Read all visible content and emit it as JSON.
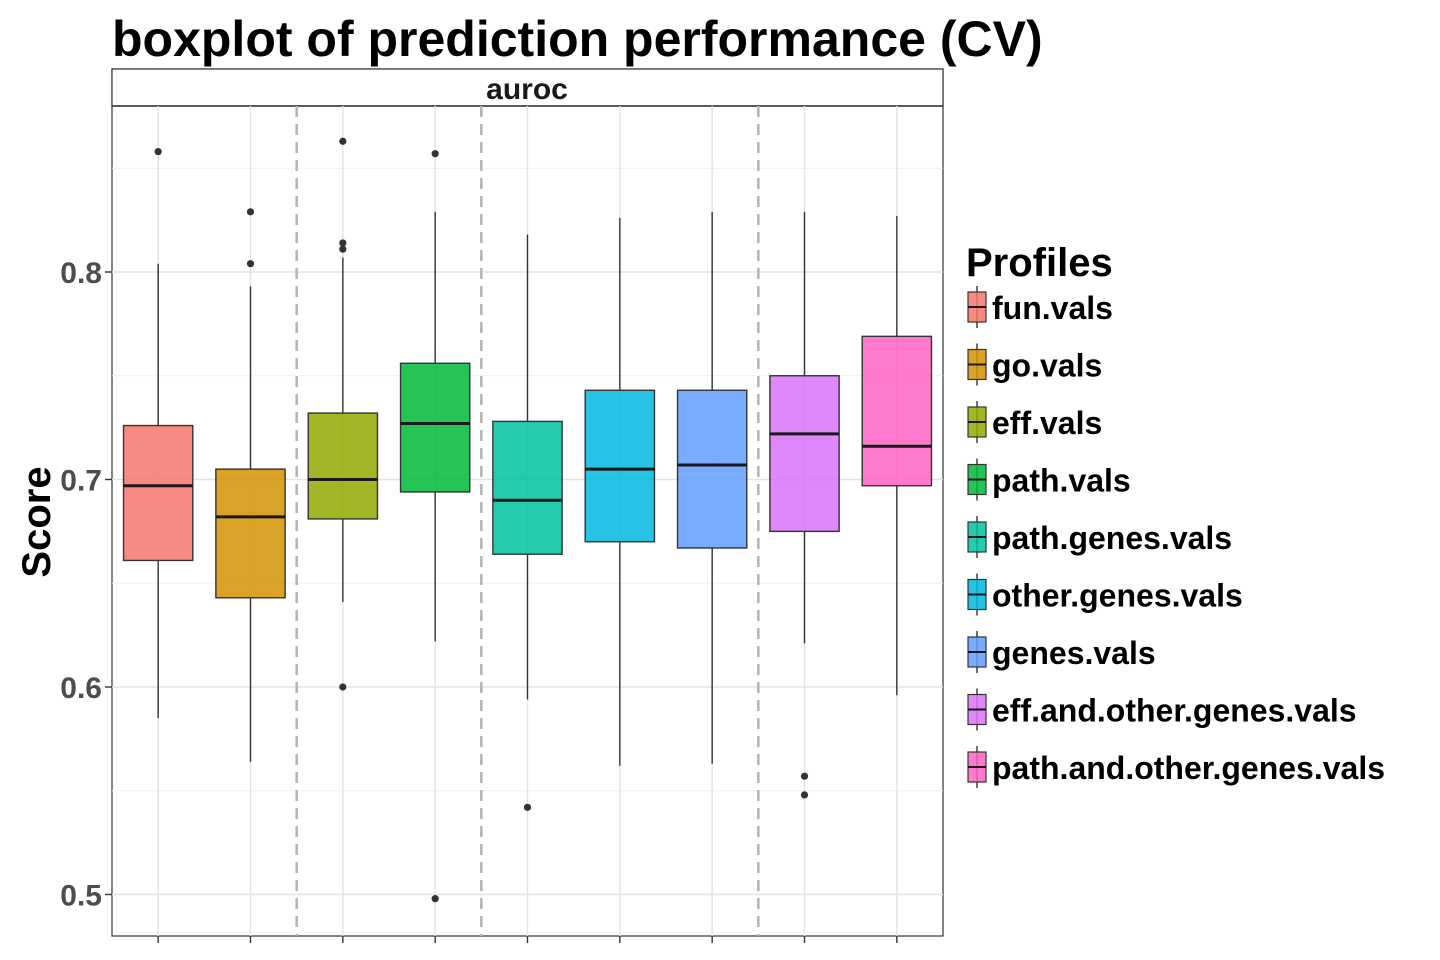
{
  "chart_data": {
    "type": "boxplot",
    "title": "boxplot of prediction performance (CV)",
    "facet_label": "auroc",
    "ylabel": "Score",
    "xlabel": "",
    "ylim": [
      0.48,
      0.88
    ],
    "y_ticks": [
      0.5,
      0.6,
      0.7,
      0.8
    ],
    "y_tick_labels": [
      "0.5",
      "0.6",
      "0.7",
      "0.8"
    ],
    "grid": true,
    "group_separators_after": [
      2,
      4,
      7
    ],
    "legend": {
      "title": "Profiles",
      "position": "right"
    },
    "series": [
      {
        "name": "fun.vals",
        "color": "#F8766D",
        "min": 0.585,
        "q1": 0.661,
        "median": 0.697,
        "q3": 0.726,
        "max": 0.804,
        "outliers": [
          0.858
        ]
      },
      {
        "name": "go.vals",
        "color": "#D39200",
        "min": 0.564,
        "q1": 0.643,
        "median": 0.682,
        "q3": 0.705,
        "max": 0.793,
        "outliers": [
          0.804,
          0.829
        ]
      },
      {
        "name": "eff.vals",
        "color": "#93AA00",
        "min": 0.641,
        "q1": 0.681,
        "median": 0.7,
        "q3": 0.732,
        "max": 0.807,
        "outliers": [
          0.6,
          0.811,
          0.814,
          0.863
        ]
      },
      {
        "name": "path.vals",
        "color": "#00BA38",
        "min": 0.622,
        "q1": 0.694,
        "median": 0.727,
        "q3": 0.756,
        "max": 0.829,
        "outliers": [
          0.498,
          0.857
        ]
      },
      {
        "name": "path.genes.vals",
        "color": "#00C19F",
        "min": 0.594,
        "q1": 0.664,
        "median": 0.69,
        "q3": 0.728,
        "max": 0.818,
        "outliers": [
          0.542
        ]
      },
      {
        "name": "other.genes.vals",
        "color": "#00B9E3",
        "min": 0.562,
        "q1": 0.67,
        "median": 0.705,
        "q3": 0.743,
        "max": 0.826,
        "outliers": []
      },
      {
        "name": "genes.vals",
        "color": "#619CFF",
        "min": 0.563,
        "q1": 0.667,
        "median": 0.707,
        "q3": 0.743,
        "max": 0.829,
        "outliers": []
      },
      {
        "name": "eff.and.other.genes.vals",
        "color": "#DB72FB",
        "min": 0.621,
        "q1": 0.675,
        "median": 0.722,
        "q3": 0.75,
        "max": 0.829,
        "outliers": [
          0.548,
          0.557
        ]
      },
      {
        "name": "path.and.other.genes.vals",
        "color": "#FF61C3",
        "min": 0.596,
        "q1": 0.697,
        "median": 0.716,
        "q3": 0.769,
        "max": 0.827,
        "outliers": []
      }
    ]
  }
}
